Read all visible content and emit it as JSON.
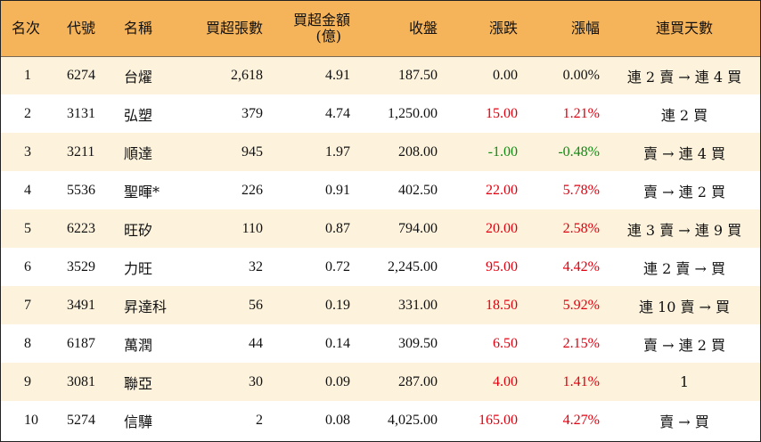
{
  "table": {
    "headers": {
      "rank": "名次",
      "code": "代號",
      "name": "名稱",
      "net_buy_lots": "買超張數",
      "net_buy_amount_line1": "買超金額",
      "net_buy_amount_line2": "(億)",
      "close": "收盤",
      "change": "漲跌",
      "change_pct": "漲幅",
      "consecutive_days": "連買天數"
    },
    "rows": [
      {
        "rank": "1",
        "code": "6274",
        "name": "台燿",
        "lots": "2,618",
        "amount": "4.91",
        "close": "187.50",
        "change": "0.00",
        "pct": "0.00%",
        "days": "連 2 賣 → 連 4 買",
        "trend": "flat"
      },
      {
        "rank": "2",
        "code": "3131",
        "name": "弘塑",
        "lots": "379",
        "amount": "4.74",
        "close": "1,250.00",
        "change": "15.00",
        "pct": "1.21%",
        "days": "連 2 買",
        "trend": "up"
      },
      {
        "rank": "3",
        "code": "3211",
        "name": "順達",
        "lots": "945",
        "amount": "1.97",
        "close": "208.00",
        "change": "-1.00",
        "pct": "-0.48%",
        "days": "賣 → 連 4 買",
        "trend": "down"
      },
      {
        "rank": "4",
        "code": "5536",
        "name": "聖暉*",
        "lots": "226",
        "amount": "0.91",
        "close": "402.50",
        "change": "22.00",
        "pct": "5.78%",
        "days": "賣 → 連 2 買",
        "trend": "up"
      },
      {
        "rank": "5",
        "code": "6223",
        "name": "旺矽",
        "lots": "110",
        "amount": "0.87",
        "close": "794.00",
        "change": "20.00",
        "pct": "2.58%",
        "days": "連 3 賣 → 連 9 買",
        "trend": "up"
      },
      {
        "rank": "6",
        "code": "3529",
        "name": "力旺",
        "lots": "32",
        "amount": "0.72",
        "close": "2,245.00",
        "change": "95.00",
        "pct": "4.42%",
        "days": "連 2 賣 → 買",
        "trend": "up"
      },
      {
        "rank": "7",
        "code": "3491",
        "name": "昇達科",
        "lots": "56",
        "amount": "0.19",
        "close": "331.00",
        "change": "18.50",
        "pct": "5.92%",
        "days": "連 10 賣 → 買",
        "trend": "up"
      },
      {
        "rank": "8",
        "code": "6187",
        "name": "萬潤",
        "lots": "44",
        "amount": "0.14",
        "close": "309.50",
        "change": "6.50",
        "pct": "2.15%",
        "days": "賣 → 連 2 買",
        "trend": "up"
      },
      {
        "rank": "9",
        "code": "3081",
        "name": "聯亞",
        "lots": "30",
        "amount": "0.09",
        "close": "287.00",
        "change": "4.00",
        "pct": "1.41%",
        "days": "1",
        "trend": "up"
      },
      {
        "rank": "10",
        "code": "5274",
        "name": "信驊",
        "lots": "2",
        "amount": "0.08",
        "close": "4,025.00",
        "change": "165.00",
        "pct": "4.27%",
        "days": "賣 → 買",
        "trend": "up"
      }
    ]
  },
  "colors": {
    "header_bg": "#f6b45a",
    "stripe_bg": "#fdf2dc",
    "up": "#e0000f",
    "down": "#0f8a12"
  }
}
